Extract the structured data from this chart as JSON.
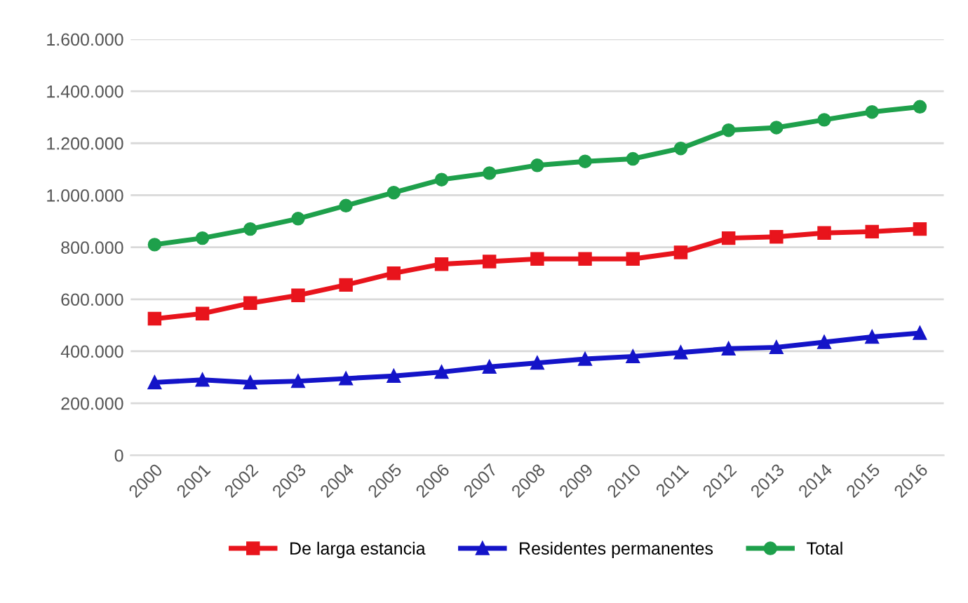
{
  "chart_data": {
    "type": "line",
    "categories": [
      "2000",
      "2001",
      "2002",
      "2003",
      "2004",
      "2005",
      "2006",
      "2007",
      "2008",
      "2009",
      "2010",
      "2011",
      "2012",
      "2013",
      "2014",
      "2015",
      "2016"
    ],
    "series": [
      {
        "name": "De larga estancia",
        "color": "#e8141c",
        "marker": "square",
        "values": [
          525000,
          545000,
          585000,
          615000,
          655000,
          700000,
          735000,
          745000,
          755000,
          755000,
          755000,
          780000,
          835000,
          840000,
          855000,
          860000,
          870000
        ]
      },
      {
        "name": "Residentes permanentes",
        "color": "#1414c8",
        "marker": "triangle",
        "values": [
          280000,
          290000,
          280000,
          285000,
          295000,
          305000,
          320000,
          340000,
          355000,
          370000,
          380000,
          395000,
          410000,
          415000,
          435000,
          455000,
          470000
        ]
      },
      {
        "name": "Total",
        "color": "#1ea04b",
        "marker": "circle",
        "values": [
          810000,
          835000,
          870000,
          910000,
          960000,
          1010000,
          1060000,
          1085000,
          1115000,
          1130000,
          1140000,
          1180000,
          1250000,
          1260000,
          1290000,
          1320000,
          1340000
        ]
      }
    ],
    "ylim": [
      0,
      1600000
    ],
    "yticks": [
      {
        "value": 0,
        "label": "0"
      },
      {
        "value": 200000,
        "label": "200.000"
      },
      {
        "value": 400000,
        "label": "400.000"
      },
      {
        "value": 600000,
        "label": "600.000"
      },
      {
        "value": 800000,
        "label": "800.000"
      },
      {
        "value": 1000000,
        "label": "1.000.000"
      },
      {
        "value": 1200000,
        "label": "1.200.000"
      },
      {
        "value": 1400000,
        "label": "1.400.000"
      },
      {
        "value": 1600000,
        "label": "1.600.000"
      }
    ],
    "grid": "y",
    "legend": "bottom",
    "line_style": "solid"
  }
}
